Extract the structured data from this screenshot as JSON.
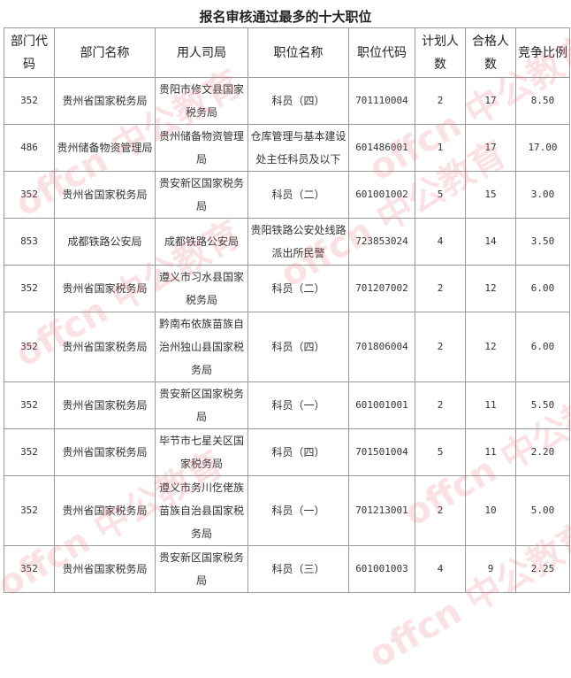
{
  "title": "报名审核通过最多的十大职位",
  "watermark": "offcn 中公教育",
  "headers": [
    "部门代码",
    "部门名称",
    "用人司局",
    "职位名称",
    "职位代码",
    "计划人数",
    "合格人数",
    "竞争比例"
  ],
  "rows": [
    [
      "352",
      "贵州省国家税务局",
      "贵阳市修文县国家税务局",
      "科员（四）",
      "701110004",
      "2",
      "17",
      "8.50"
    ],
    [
      "486",
      "贵州储备物资管理局",
      "贵州储备物资管理局",
      "仓库管理与基本建设处主任科员及以下",
      "601486001",
      "1",
      "17",
      "17.00"
    ],
    [
      "352",
      "贵州省国家税务局",
      "贵安新区国家税务局",
      "科员（二）",
      "601001002",
      "5",
      "15",
      "3.00"
    ],
    [
      "853",
      "成都铁路公安局",
      "成都铁路公安局",
      "贵阳铁路公安处线路派出所民警",
      "723853024",
      "4",
      "14",
      "3.50"
    ],
    [
      "352",
      "贵州省国家税务局",
      "遵义市习水县国家税务局",
      "科员（二）",
      "701207002",
      "2",
      "12",
      "6.00"
    ],
    [
      "352",
      "贵州省国家税务局",
      "黔南布依族苗族自治州独山县国家税务局",
      "科员（四）",
      "701806004",
      "2",
      "12",
      "6.00"
    ],
    [
      "352",
      "贵州省国家税务局",
      "贵安新区国家税务局",
      "科员（一）",
      "601001001",
      "2",
      "11",
      "5.50"
    ],
    [
      "352",
      "贵州省国家税务局",
      "毕节市七星关区国家税务局",
      "科员（四）",
      "701501004",
      "5",
      "11",
      "2.20"
    ],
    [
      "352",
      "贵州省国家税务局",
      "遵义市务川仡佬族苗族自治县国家税务局",
      "科员（一）",
      "701213001",
      "2",
      "10",
      "5.00"
    ],
    [
      "352",
      "贵州省国家税务局",
      "贵安新区国家税务局",
      "科员（三）",
      "601001003",
      "4",
      "9",
      "2.25"
    ]
  ]
}
